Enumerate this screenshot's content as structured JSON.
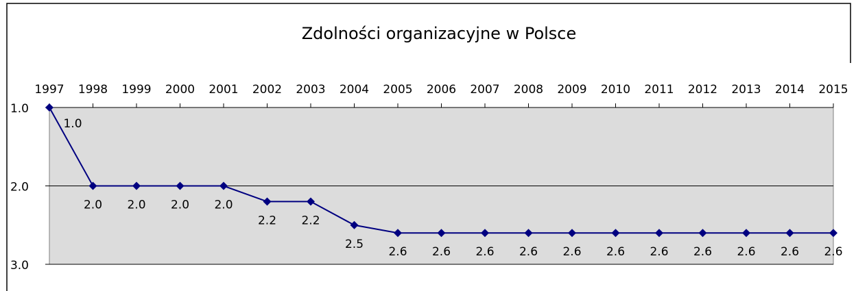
{
  "chart_data": {
    "type": "line",
    "title": "Zdolności organizacyjne w Polsce",
    "categories": [
      "1997",
      "1998",
      "1999",
      "2000",
      "2001",
      "2002",
      "2003",
      "2004",
      "2005",
      "2006",
      "2007",
      "2008",
      "2009",
      "2010",
      "2011",
      "2012",
      "2013",
      "2014",
      "2015"
    ],
    "series": [
      {
        "name": "Zdolności organizacyjne",
        "color": "#000080",
        "values": [
          1.0,
          2.0,
          2.0,
          2.0,
          2.0,
          2.2,
          2.2,
          2.5,
          2.6,
          2.6,
          2.6,
          2.6,
          2.6,
          2.6,
          2.6,
          2.6,
          2.6,
          2.6,
          2.6
        ],
        "value_labels": [
          "1.0",
          "2.0",
          "2.0",
          "2.0",
          "2.0",
          "2.2",
          "2.2",
          "2.5",
          "2.6",
          "2.6",
          "2.6",
          "2.6",
          "2.6",
          "2.6",
          "2.6",
          "2.6",
          "2.6",
          "2.6",
          "2.6"
        ]
      }
    ],
    "ylim": [
      3.0,
      1.0
    ],
    "yticks": [
      {
        "value": 1.0,
        "label": "1.0"
      },
      {
        "value": 2.0,
        "label": "2.0"
      },
      {
        "value": 3.0,
        "label": "3.0"
      }
    ],
    "grid": true
  }
}
